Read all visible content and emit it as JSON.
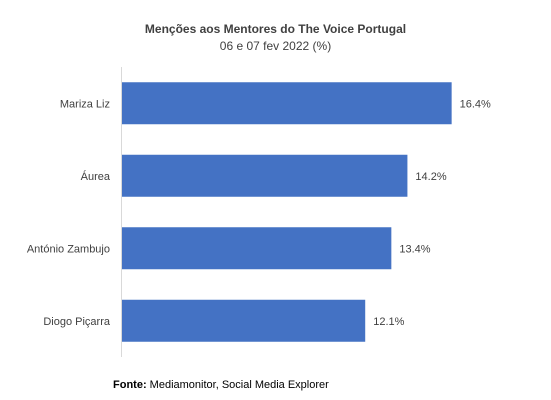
{
  "chart_data": {
    "type": "bar",
    "orientation": "horizontal",
    "title": "Menções aos Mentores do The Voice Portugal",
    "subtitle": "06 e 07 fev 2022 (%)",
    "categories": [
      "Mariza Liz",
      "Áurea",
      "António Zambujo",
      "Diogo Piçarra"
    ],
    "values": [
      16.4,
      14.2,
      13.4,
      12.1
    ],
    "value_labels": [
      "16.4%",
      "14.2%",
      "13.4%",
      "12.1%"
    ],
    "xlim": [
      0,
      20
    ],
    "grid": false,
    "bar_color": "#4472C4"
  },
  "source": {
    "label": "Fonte:",
    "text": "Mediamonitor, Social Media Explorer"
  }
}
